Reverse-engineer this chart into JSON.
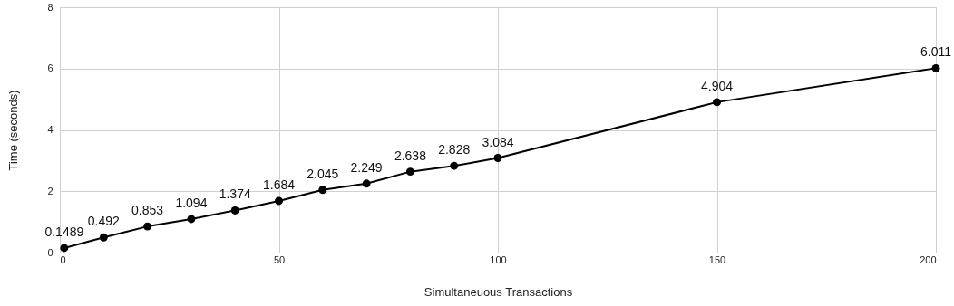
{
  "chart_data": {
    "type": "line",
    "xlabel": "Simultaneuous Transactions",
    "ylabel": "Time (seconds)",
    "x": [
      1,
      10,
      20,
      30,
      40,
      50,
      60,
      70,
      80,
      90,
      100,
      150,
      200
    ],
    "series": [
      {
        "color": "#000000",
        "values": [
          0.1489,
          0.492,
          0.853,
          1.094,
          1.374,
          1.684,
          2.045,
          2.249,
          2.638,
          2.828,
          3.084,
          4.904,
          6.011
        ]
      }
    ],
    "xlim": [
      0,
      200
    ],
    "xticks": [
      0,
      50,
      100,
      150,
      200
    ],
    "ylim": [
      0,
      8
    ],
    "yticks": [
      0,
      2,
      4,
      6,
      8
    ],
    "grid": true,
    "marker": "circle",
    "line_style": "solid",
    "data_labels": true
  }
}
